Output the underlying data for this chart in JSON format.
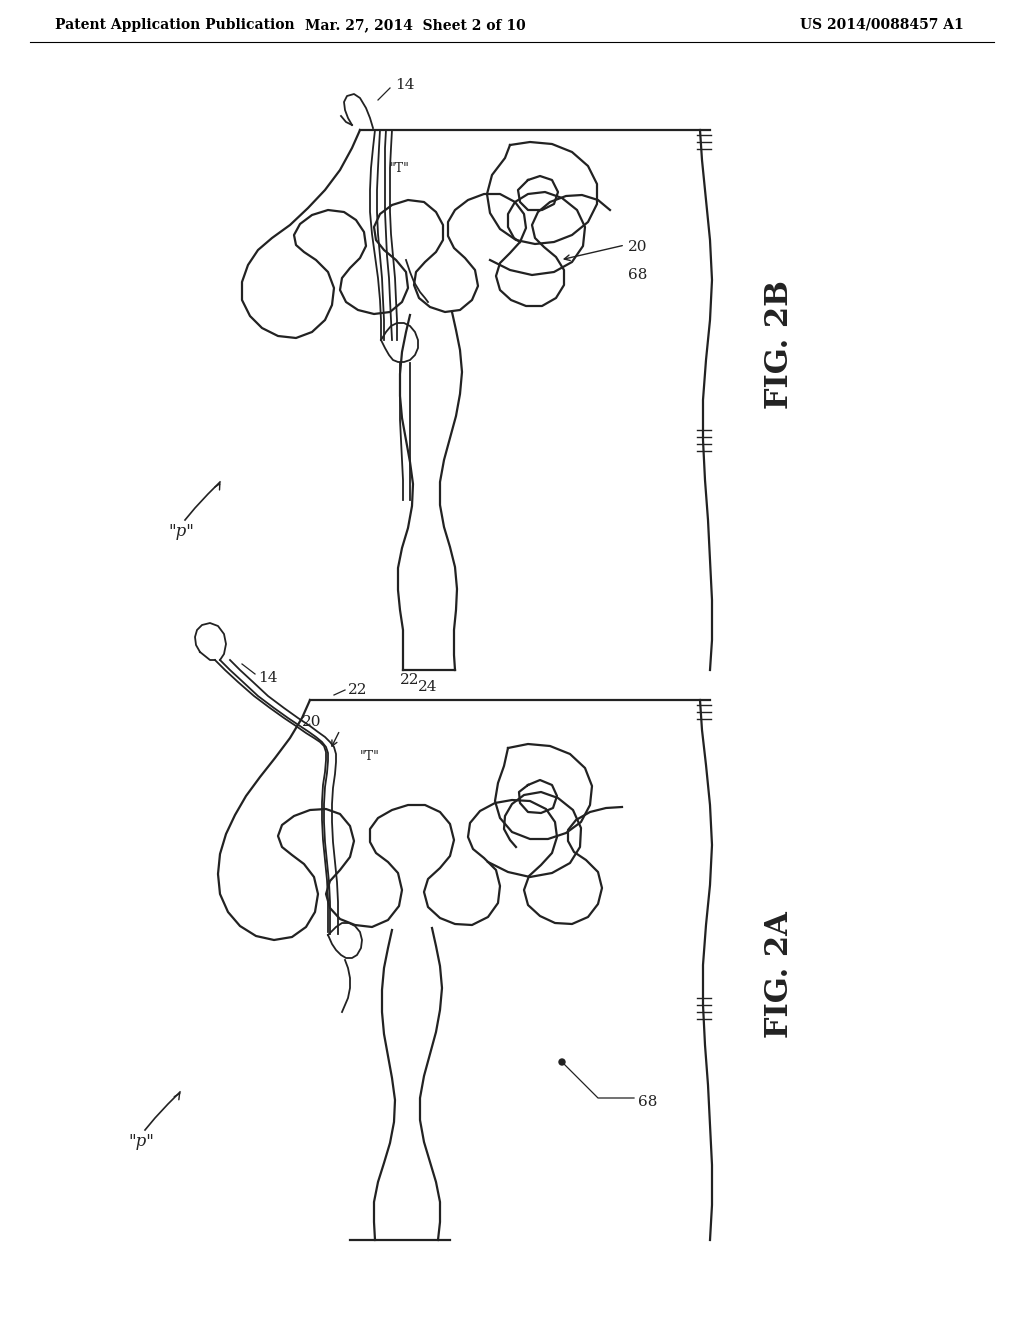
{
  "bg_color": "#ffffff",
  "line_color": "#222222",
  "header_left": "Patent Application Publication",
  "header_center": "Mar. 27, 2014  Sheet 2 of 10",
  "header_right": "US 2014/0088457 A1",
  "fig2b_label": "FIG. 2B",
  "fig2a_label": "FIG. 2A",
  "header_fontsize": 10,
  "figlabel_fontsize": 22,
  "label_fontsize": 11,
  "lw_body": 1.6,
  "lw_device": 1.3
}
